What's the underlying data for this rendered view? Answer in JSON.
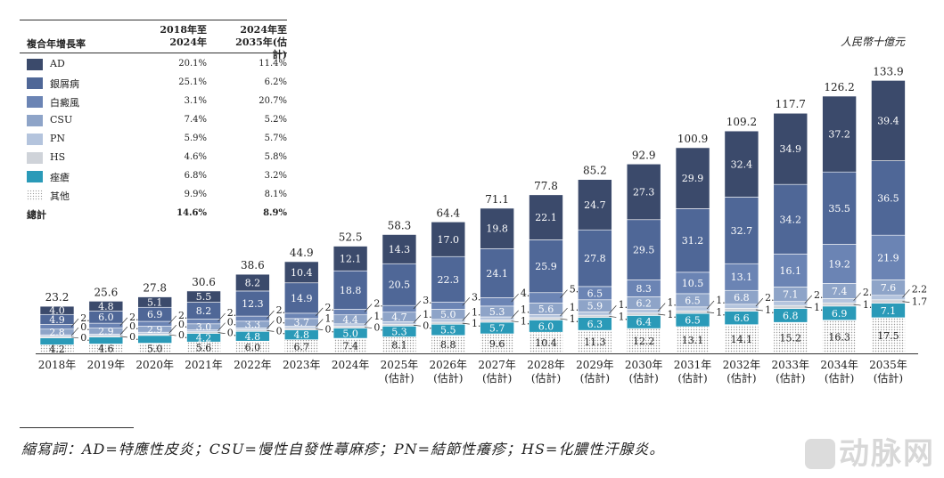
{
  "legend": {
    "header_col0": "複合年增長率",
    "header_col1": "2018年至\n2024年",
    "header_col2": "2024年至\n2035年(估計)",
    "rows": [
      {
        "name": "AD",
        "cagr1": "20.1%",
        "cagr2": "11.4%",
        "color": "#3b4a6b"
      },
      {
        "name": "銀屑病",
        "cagr1": "25.1%",
        "cagr2": "6.2%",
        "color": "#4f6797"
      },
      {
        "name": "白癜風",
        "cagr1": "3.1%",
        "cagr2": "20.7%",
        "color": "#6b84b4"
      },
      {
        "name": "CSU",
        "cagr1": "7.4%",
        "cagr2": "5.2%",
        "color": "#8ea4c8"
      },
      {
        "name": "PN",
        "cagr1": "5.9%",
        "cagr2": "5.7%",
        "color": "#b4c4dd"
      },
      {
        "name": "HS",
        "cagr1": "4.6%",
        "cagr2": "5.8%",
        "color": "#cfd3d9"
      },
      {
        "name": "痤瘡",
        "cagr1": "6.8%",
        "cagr2": "3.2%",
        "color": "#2a9ab8"
      },
      {
        "name": "其他",
        "cagr1": "9.9%",
        "cagr2": "8.1%",
        "color": "dotted"
      }
    ],
    "total": {
      "name": "總計",
      "cagr1": "14.6%",
      "cagr2": "8.9%"
    }
  },
  "unit": "人民幣十億元",
  "footnote": "縮寫詞：AD=特應性皮炎；CSU=慢性自發性蕁麻疹；PN=結節性癢疹；HS=化膿性汗腺炎。",
  "watermark": "动脉网",
  "chart_data": {
    "type": "bar",
    "stacked": true,
    "categories": [
      "2018年",
      "2019年",
      "2020年",
      "2021年",
      "2022年",
      "2023年",
      "2024年",
      "2025年\n(估計)",
      "2026年\n(估計)",
      "2027年\n(估計)",
      "2028年\n(估計)",
      "2029年\n(估計)",
      "2030年\n(估計)",
      "2031年\n(估計)",
      "2032年\n(估計)",
      "2033年\n(估計)",
      "2034年\n(估計)",
      "2035年\n(估計)"
    ],
    "totals": [
      "23.2",
      "25.6",
      "27.8",
      "30.6",
      "38.6",
      "44.9",
      "52.5",
      "58.3",
      "64.4",
      "71.1",
      "77.8",
      "85.2",
      "92.9",
      "100.9",
      "109.2",
      "117.7",
      "126.2",
      "133.9"
    ],
    "series": [
      {
        "name": "其他",
        "values": [
          4.2,
          4.6,
          5.0,
          5.6,
          6.0,
          6.7,
          7.4,
          8.1,
          8.8,
          9.6,
          10.4,
          11.3,
          12.2,
          13.1,
          14.1,
          15.2,
          16.3,
          17.5
        ]
      },
      {
        "name": "痤瘡",
        "values": [
          3.4,
          3.4,
          3.8,
          4.2,
          4.8,
          4.8,
          5.0,
          5.3,
          5.5,
          5.7,
          6.0,
          6.3,
          6.4,
          6.5,
          6.6,
          6.8,
          6.9,
          7.1
        ]
      },
      {
        "name": "HS",
        "values": [
          0.7,
          0.7,
          0.7,
          0.8,
          0.8,
          0.9,
          0.9,
          0.9,
          1.0,
          1.1,
          1.1,
          1.1,
          1.2,
          1.3,
          1.4,
          1.5,
          1.6,
          1.7
        ]
      },
      {
        "name": "PN",
        "values": [
          0.8,
          0.8,
          0.9,
          0.9,
          0.9,
          1.0,
          1.2,
          1.2,
          1.4,
          1.5,
          1.6,
          1.7,
          1.8,
          1.9,
          2.0,
          2.0,
          2.1,
          2.2
        ]
      },
      {
        "name": "CSU",
        "values": [
          2.8,
          2.9,
          2.9,
          3.0,
          3.3,
          3.7,
          4.4,
          4.7,
          5.0,
          5.3,
          5.6,
          5.9,
          6.2,
          6.5,
          6.8,
          7.1,
          7.4,
          7.6
        ]
      },
      {
        "name": "白癜風",
        "values": [
          2.3,
          2.4,
          2.4,
          2.4,
          2.5,
          2.6,
          2.8,
          3.3,
          3.5,
          4.1,
          5.1,
          6.5,
          8.3,
          10.5,
          13.1,
          16.1,
          19.2,
          21.9
        ]
      },
      {
        "name": "銀屑病",
        "values": [
          4.9,
          6.0,
          6.9,
          8.2,
          12.3,
          14.9,
          18.8,
          20.5,
          22.3,
          24.1,
          25.9,
          27.8,
          29.5,
          31.2,
          32.7,
          34.2,
          35.5,
          36.5
        ]
      },
      {
        "name": "AD",
        "values": [
          4.0,
          4.8,
          5.1,
          5.5,
          8.2,
          10.4,
          12.1,
          14.3,
          17.0,
          19.8,
          22.1,
          24.7,
          27.3,
          29.9,
          32.4,
          34.9,
          37.2,
          39.4
        ]
      }
    ],
    "ylim": [
      0,
      140
    ]
  }
}
